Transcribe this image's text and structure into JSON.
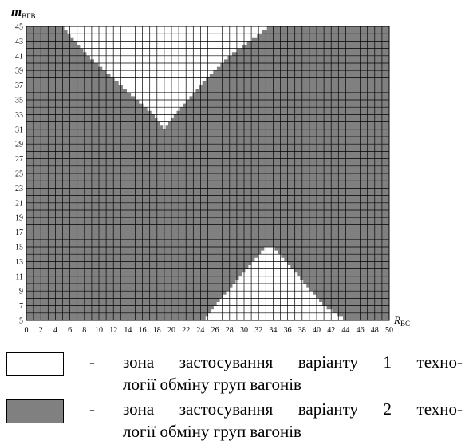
{
  "chart_data": {
    "type": "heatmap",
    "title": "",
    "ylabel": {
      "main": "m",
      "sub": "ВГВ"
    },
    "xlabel": {
      "main": "R",
      "sub": "ВС"
    },
    "xlim": [
      0,
      50
    ],
    "ylim": [
      5,
      45
    ],
    "x_tick_labels": [
      "0",
      "2",
      "4",
      "6",
      "8",
      "10",
      "12",
      "14",
      "16",
      "18",
      "20",
      "22",
      "24",
      "26",
      "28",
      "30",
      "32",
      "34",
      "36",
      "38",
      "40",
      "42",
      "44",
      "46",
      "48",
      "50"
    ],
    "y_tick_labels": [
      "5",
      "7",
      "9",
      "11",
      "13",
      "15",
      "17",
      "19",
      "21",
      "23",
      "25",
      "27",
      "29",
      "31",
      "33",
      "35",
      "37",
      "39",
      "41",
      "43",
      "45"
    ],
    "grid": true,
    "zones": [
      {
        "name": "variant-1",
        "color": "#ffffff",
        "regions": [
          {
            "part": "top",
            "y_range": [
              31,
              45
            ],
            "left_boundary": {
              "y": [
                45,
                41,
                37,
                33,
                31
              ],
              "x": [
                5,
                8.5,
                13,
                17.5,
                19
              ]
            },
            "right_boundary": {
              "y": [
                45,
                41,
                37,
                33,
                31
              ],
              "x": [
                33.5,
                28,
                24,
                20.5,
                19
              ]
            }
          },
          {
            "part": "bottom",
            "y_range": [
              5,
              15
            ],
            "left_boundary": {
              "y": [
                15,
                11,
                7,
                5
              ],
              "x": [
                33,
                29.5,
                26,
                24.5
              ]
            },
            "right_boundary": {
              "y": [
                15,
                11,
                7,
                5
              ],
              "x": [
                34,
                37.5,
                41,
                44
              ]
            }
          }
        ]
      },
      {
        "name": "variant-2",
        "color": "#808080",
        "regions": "remaining area"
      }
    ],
    "legend": [
      {
        "color": "#ffffff",
        "dash": "-",
        "line1": "зона застосування варіанту 1 техно-",
        "line2": "логії обміну груп вагонів"
      },
      {
        "color": "#808080",
        "dash": "-",
        "line1": "зона застосування варіанту 2 техно-",
        "line2": "логії обміну груп вагонів"
      }
    ]
  }
}
